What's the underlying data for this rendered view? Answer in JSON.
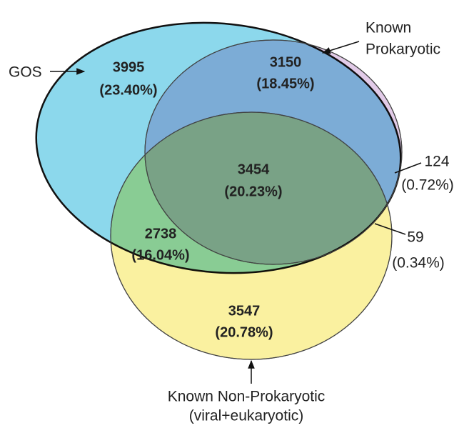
{
  "sets": [
    {
      "label": [
        "GOS"
      ]
    },
    {
      "label": [
        "Known",
        "Prokaryotic"
      ]
    },
    {
      "label": [
        "Known Non-Prokaryotic",
        "(viral+eukaryotic)"
      ]
    }
  ],
  "regions": [
    {
      "count": "3995",
      "percent": "(23.40%)"
    },
    {
      "count": "3150",
      "percent": "(18.45%)"
    },
    {
      "count": "3454",
      "percent": "(20.23%)"
    },
    {
      "count": "2738",
      "percent": "(16.04%)"
    },
    {
      "count": "3547",
      "percent": "(20.78%)"
    },
    {
      "count": "124",
      "percent": "(0.72%)"
    },
    {
      "count": "59",
      "percent": "(0.34%)"
    }
  ]
}
